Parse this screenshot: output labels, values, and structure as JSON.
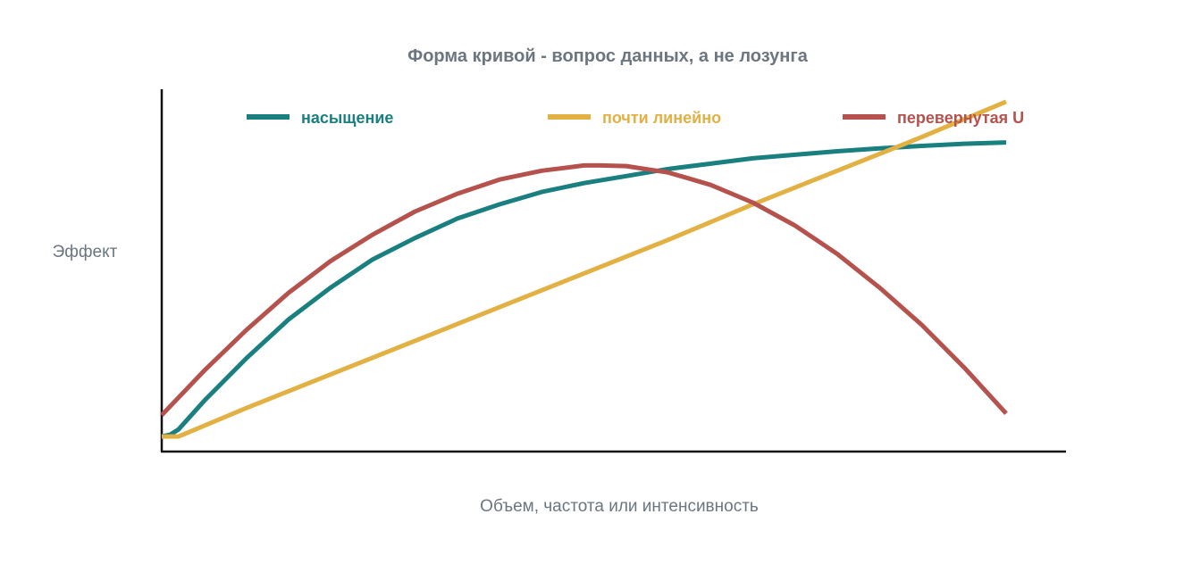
{
  "chart_data": {
    "type": "line",
    "title": "Форма кривой - вопрос данных, а не лозунга",
    "xlabel": "Объем, частота или интенсивность",
    "ylabel": "Эффект",
    "xlim": [
      0,
      100
    ],
    "ylim": [
      0,
      100
    ],
    "show_tick_labels": false,
    "grid": false,
    "legend_position": "top",
    "series": [
      {
        "name": "насыщение",
        "color": "#1a7f7f",
        "x": [
          0,
          1,
          2,
          5,
          10,
          15,
          20,
          25,
          30,
          35,
          40,
          45,
          50,
          55,
          60,
          65,
          70,
          75,
          80,
          85,
          90,
          95,
          100
        ],
        "y": [
          2,
          2.5,
          4,
          12,
          24,
          35,
          44,
          52,
          58,
          63.5,
          67.5,
          71,
          73.5,
          75.5,
          77.5,
          79,
          80.5,
          81.5,
          82.5,
          83.3,
          84,
          84.6,
          85
        ]
      },
      {
        "name": "почти линейно",
        "color": "#e3b043",
        "x": [
          0,
          2,
          10,
          20,
          30,
          40,
          50,
          60,
          70,
          80,
          90,
          100
        ],
        "y": [
          2,
          2,
          10,
          19.5,
          29,
          38.5,
          48,
          57.5,
          67.5,
          77,
          86.5,
          96.5
        ]
      },
      {
        "name": "перевернутая U",
        "color": "#b5524e",
        "x": [
          0,
          5,
          10,
          15,
          20,
          25,
          30,
          35,
          40,
          45,
          50,
          52,
          55,
          60,
          65,
          70,
          75,
          80,
          85,
          90,
          95,
          100
        ],
        "y": [
          8,
          20.5,
          32,
          42.5,
          51.5,
          59,
          65.5,
          70.5,
          74.5,
          77,
          78.5,
          78.5,
          78.3,
          76.5,
          73,
          68,
          61.5,
          53.5,
          44,
          33.5,
          21.5,
          8.5
        ]
      }
    ]
  }
}
